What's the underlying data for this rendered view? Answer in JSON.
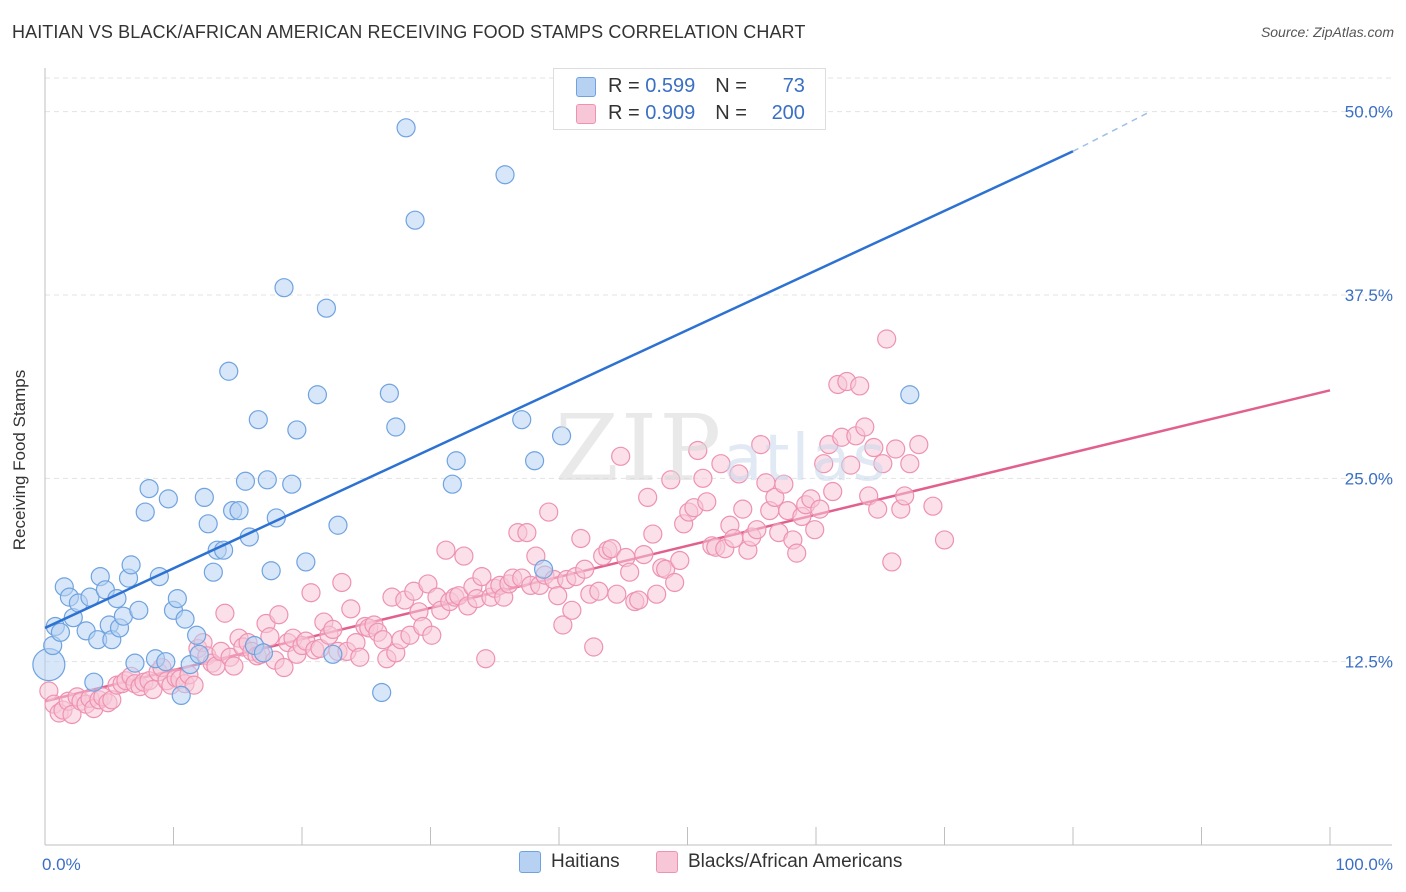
{
  "title": "HAITIAN VS BLACK/AFRICAN AMERICAN RECEIVING FOOD STAMPS CORRELATION CHART",
  "source": "Source: ZipAtlas.com",
  "watermark_zip": "ZIP",
  "watermark_atlas": "atlas",
  "stats": {
    "haitians": {
      "r_label": "R =",
      "r": "0.599",
      "n_label": "N =",
      "n": "73",
      "color": "#a8c8f0"
    },
    "blacks": {
      "r_label": "R =",
      "r": "0.909",
      "n_label": "N =",
      "n": "200",
      "color": "#f5b8cc"
    }
  },
  "legend": {
    "haitians": "Haitians",
    "blacks": "Blacks/African Americans"
  },
  "chart_data": {
    "type": "scatter",
    "title": "HAITIAN VS BLACK/AFRICAN AMERICAN RECEIVING FOOD STAMPS CORRELATION CHART",
    "xlabel": "",
    "ylabel": "Receiving Food Stamps",
    "xlim": [
      0,
      100
    ],
    "ylim": [
      0,
      52.5
    ],
    "x_tick_labels": [
      "0.0%",
      "100.0%"
    ],
    "y_ticks": [
      12.5,
      25.0,
      37.5,
      50.0
    ],
    "y_tick_labels": [
      "12.5%",
      "25.0%",
      "37.5%",
      "50.0%"
    ],
    "grid": true,
    "series": [
      {
        "name": "Haitians",
        "color": "#6fa3e0",
        "fill": "#b7d1f2",
        "trend": {
          "x0": 0,
          "y0": 14.8,
          "x1": 80,
          "y1": 47.3,
          "dash_to_x": 86,
          "dash_to_y": 50.0,
          "color": "#2d72d2"
        },
        "points": [
          [
            0.3,
            12.3
          ],
          [
            0.6,
            13.6
          ],
          [
            0.8,
            14.9
          ],
          [
            1.2,
            14.5
          ],
          [
            1.5,
            17.6
          ],
          [
            1.9,
            16.9
          ],
          [
            2.2,
            15.5
          ],
          [
            2.6,
            16.5
          ],
          [
            3.2,
            14.6
          ],
          [
            3.5,
            16.9
          ],
          [
            3.8,
            11.1
          ],
          [
            4.1,
            14.0
          ],
          [
            4.3,
            18.3
          ],
          [
            4.7,
            17.4
          ],
          [
            5.0,
            15.0
          ],
          [
            5.2,
            14.0
          ],
          [
            5.6,
            16.8
          ],
          [
            5.8,
            14.8
          ],
          [
            6.1,
            15.6
          ],
          [
            6.5,
            18.2
          ],
          [
            6.7,
            19.1
          ],
          [
            7.0,
            12.4
          ],
          [
            7.3,
            16.0
          ],
          [
            7.8,
            22.7
          ],
          [
            8.1,
            24.3
          ],
          [
            8.6,
            12.7
          ],
          [
            8.9,
            18.3
          ],
          [
            9.4,
            12.5
          ],
          [
            9.6,
            23.6
          ],
          [
            10.0,
            16.0
          ],
          [
            10.3,
            16.8
          ],
          [
            10.6,
            10.2
          ],
          [
            10.9,
            15.4
          ],
          [
            11.3,
            12.3
          ],
          [
            11.8,
            14.3
          ],
          [
            12.0,
            13.0
          ],
          [
            12.4,
            23.7
          ],
          [
            12.7,
            21.9
          ],
          [
            13.1,
            18.6
          ],
          [
            13.4,
            20.1
          ],
          [
            13.9,
            20.1
          ],
          [
            14.3,
            32.3
          ],
          [
            14.6,
            22.8
          ],
          [
            15.1,
            22.8
          ],
          [
            15.6,
            24.8
          ],
          [
            15.9,
            21.0
          ],
          [
            16.3,
            13.6
          ],
          [
            16.6,
            29.0
          ],
          [
            17.0,
            13.1
          ],
          [
            17.3,
            24.9
          ],
          [
            17.6,
            18.7
          ],
          [
            18.0,
            22.3
          ],
          [
            18.6,
            38.0
          ],
          [
            19.2,
            24.6
          ],
          [
            19.6,
            28.3
          ],
          [
            20.3,
            19.3
          ],
          [
            21.2,
            30.7
          ],
          [
            21.9,
            36.6
          ],
          [
            22.4,
            13.0
          ],
          [
            22.8,
            21.8
          ],
          [
            26.2,
            10.4
          ],
          [
            26.8,
            30.8
          ],
          [
            27.3,
            28.5
          ],
          [
            28.1,
            48.9
          ],
          [
            28.8,
            42.6
          ],
          [
            31.7,
            24.6
          ],
          [
            32.0,
            26.2
          ],
          [
            35.8,
            45.7
          ],
          [
            37.1,
            29.0
          ],
          [
            38.1,
            26.2
          ],
          [
            38.8,
            18.8
          ],
          [
            40.2,
            27.9
          ],
          [
            67.3,
            30.7
          ]
        ]
      },
      {
        "name": "Blacks/African Americans",
        "color": "#ee92b1",
        "fill": "#f7c7d7",
        "trend": {
          "x0": 0,
          "y0": 9.8,
          "x1": 100,
          "y1": 31.0,
          "color": "#e2608e"
        },
        "points": [
          [
            0.3,
            10.5
          ],
          [
            0.7,
            9.6
          ],
          [
            1.1,
            9.0
          ],
          [
            1.4,
            9.2
          ],
          [
            1.8,
            9.8
          ],
          [
            2.1,
            8.9
          ],
          [
            2.5,
            10.1
          ],
          [
            2.8,
            9.8
          ],
          [
            3.2,
            9.6
          ],
          [
            3.5,
            10.0
          ],
          [
            3.8,
            9.3
          ],
          [
            4.2,
            9.9
          ],
          [
            4.5,
            10.1
          ],
          [
            4.9,
            9.7
          ],
          [
            5.2,
            9.9
          ],
          [
            5.6,
            10.9
          ],
          [
            6.0,
            11.0
          ],
          [
            6.3,
            11.2
          ],
          [
            6.7,
            11.5
          ],
          [
            7.0,
            11.0
          ],
          [
            7.4,
            10.8
          ],
          [
            7.7,
            11.1
          ],
          [
            8.1,
            11.2
          ],
          [
            8.4,
            10.6
          ],
          [
            8.8,
            11.8
          ],
          [
            9.1,
            12.1
          ],
          [
            9.5,
            11.2
          ],
          [
            9.8,
            10.9
          ],
          [
            10.2,
            11.4
          ],
          [
            10.5,
            11.3
          ],
          [
            10.9,
            11.0
          ],
          [
            11.2,
            11.6
          ],
          [
            11.6,
            10.9
          ],
          [
            11.9,
            13.4
          ],
          [
            12.3,
            13.8
          ],
          [
            12.6,
            12.9
          ],
          [
            13.0,
            12.4
          ],
          [
            13.3,
            12.2
          ],
          [
            13.7,
            13.2
          ],
          [
            14.0,
            15.8
          ],
          [
            14.4,
            12.8
          ],
          [
            14.7,
            12.2
          ],
          [
            15.1,
            14.1
          ],
          [
            15.4,
            13.5
          ],
          [
            15.8,
            13.8
          ],
          [
            16.1,
            13.2
          ],
          [
            16.5,
            12.9
          ],
          [
            16.8,
            13.0
          ],
          [
            17.2,
            15.1
          ],
          [
            17.5,
            14.2
          ],
          [
            17.9,
            12.6
          ],
          [
            18.2,
            15.7
          ],
          [
            18.6,
            12.1
          ],
          [
            18.9,
            13.8
          ],
          [
            19.3,
            14.1
          ],
          [
            19.6,
            13.0
          ],
          [
            20.0,
            13.6
          ],
          [
            20.3,
            13.9
          ],
          [
            20.7,
            17.2
          ],
          [
            21.0,
            13.3
          ],
          [
            21.4,
            13.4
          ],
          [
            21.7,
            15.2
          ],
          [
            22.1,
            14.3
          ],
          [
            22.4,
            14.7
          ],
          [
            22.8,
            13.2
          ],
          [
            23.1,
            17.9
          ],
          [
            23.5,
            13.2
          ],
          [
            23.8,
            16.1
          ],
          [
            24.2,
            13.8
          ],
          [
            24.5,
            12.8
          ],
          [
            24.9,
            14.9
          ],
          [
            25.2,
            14.8
          ],
          [
            25.6,
            15.0
          ],
          [
            25.9,
            14.5
          ],
          [
            26.3,
            14.0
          ],
          [
            26.6,
            12.7
          ],
          [
            27.0,
            16.9
          ],
          [
            27.3,
            13.1
          ],
          [
            27.7,
            14.0
          ],
          [
            28.0,
            16.7
          ],
          [
            28.4,
            14.3
          ],
          [
            28.7,
            17.3
          ],
          [
            29.1,
            15.9
          ],
          [
            29.4,
            14.9
          ],
          [
            29.8,
            17.8
          ],
          [
            30.1,
            14.3
          ],
          [
            30.5,
            16.9
          ],
          [
            30.8,
            16.0
          ],
          [
            31.2,
            20.1
          ],
          [
            31.5,
            16.6
          ],
          [
            31.9,
            16.9
          ],
          [
            32.2,
            17.0
          ],
          [
            32.6,
            19.7
          ],
          [
            32.9,
            16.3
          ],
          [
            33.3,
            17.6
          ],
          [
            33.6,
            16.8
          ],
          [
            34.0,
            18.3
          ],
          [
            34.3,
            12.7
          ],
          [
            34.7,
            16.9
          ],
          [
            35.0,
            17.5
          ],
          [
            35.4,
            17.7
          ],
          [
            35.7,
            16.9
          ],
          [
            36.1,
            17.8
          ],
          [
            36.4,
            18.2
          ],
          [
            36.8,
            21.3
          ],
          [
            37.1,
            18.2
          ],
          [
            37.5,
            21.3
          ],
          [
            37.8,
            17.7
          ],
          [
            38.2,
            19.7
          ],
          [
            38.5,
            17.7
          ],
          [
            38.9,
            18.4
          ],
          [
            39.2,
            22.7
          ],
          [
            39.6,
            18.1
          ],
          [
            39.9,
            17.0
          ],
          [
            40.3,
            15.0
          ],
          [
            40.6,
            18.1
          ],
          [
            41.0,
            16.0
          ],
          [
            41.3,
            18.3
          ],
          [
            41.7,
            20.9
          ],
          [
            42.0,
            18.8
          ],
          [
            42.4,
            17.1
          ],
          [
            42.7,
            13.5
          ],
          [
            43.1,
            17.3
          ],
          [
            43.4,
            19.7
          ],
          [
            43.8,
            20.1
          ],
          [
            44.1,
            20.2
          ],
          [
            44.5,
            17.1
          ],
          [
            44.8,
            26.5
          ],
          [
            45.2,
            19.6
          ],
          [
            45.5,
            18.6
          ],
          [
            45.9,
            16.6
          ],
          [
            46.2,
            16.7
          ],
          [
            46.6,
            19.8
          ],
          [
            46.9,
            23.7
          ],
          [
            47.3,
            21.2
          ],
          [
            47.6,
            17.1
          ],
          [
            48.0,
            18.9
          ],
          [
            48.3,
            18.8
          ],
          [
            48.7,
            24.9
          ],
          [
            49.0,
            17.9
          ],
          [
            49.4,
            19.4
          ],
          [
            49.7,
            21.9
          ],
          [
            50.1,
            22.7
          ],
          [
            50.5,
            23.0
          ],
          [
            50.8,
            26.9
          ],
          [
            51.2,
            25.0
          ],
          [
            51.5,
            23.4
          ],
          [
            51.9,
            20.4
          ],
          [
            52.2,
            20.3
          ],
          [
            52.6,
            26.0
          ],
          [
            52.9,
            20.2
          ],
          [
            53.3,
            21.8
          ],
          [
            53.6,
            20.9
          ],
          [
            54.0,
            25.3
          ],
          [
            54.3,
            22.9
          ],
          [
            54.7,
            20.1
          ],
          [
            55.0,
            21.0
          ],
          [
            55.4,
            21.5
          ],
          [
            55.7,
            27.3
          ],
          [
            56.1,
            24.7
          ],
          [
            56.4,
            22.8
          ],
          [
            56.8,
            23.7
          ],
          [
            57.1,
            21.3
          ],
          [
            57.5,
            24.6
          ],
          [
            57.8,
            22.8
          ],
          [
            58.2,
            20.8
          ],
          [
            58.5,
            19.9
          ],
          [
            58.9,
            22.4
          ],
          [
            59.2,
            23.2
          ],
          [
            59.6,
            23.6
          ],
          [
            59.9,
            21.5
          ],
          [
            60.3,
            22.9
          ],
          [
            60.6,
            26.0
          ],
          [
            61.0,
            27.3
          ],
          [
            61.3,
            24.1
          ],
          [
            61.7,
            31.4
          ],
          [
            62.0,
            27.8
          ],
          [
            62.4,
            31.6
          ],
          [
            62.7,
            25.9
          ],
          [
            63.1,
            27.9
          ],
          [
            63.4,
            31.3
          ],
          [
            63.8,
            28.5
          ],
          [
            64.1,
            23.8
          ],
          [
            64.5,
            27.1
          ],
          [
            64.8,
            22.9
          ],
          [
            65.2,
            26.0
          ],
          [
            65.5,
            34.5
          ],
          [
            65.9,
            19.3
          ],
          [
            66.2,
            27.0
          ],
          [
            66.6,
            22.9
          ],
          [
            66.9,
            23.8
          ],
          [
            67.3,
            26.0
          ],
          [
            68.0,
            27.3
          ],
          [
            69.1,
            23.1
          ],
          [
            70.0,
            20.8
          ]
        ]
      }
    ]
  }
}
